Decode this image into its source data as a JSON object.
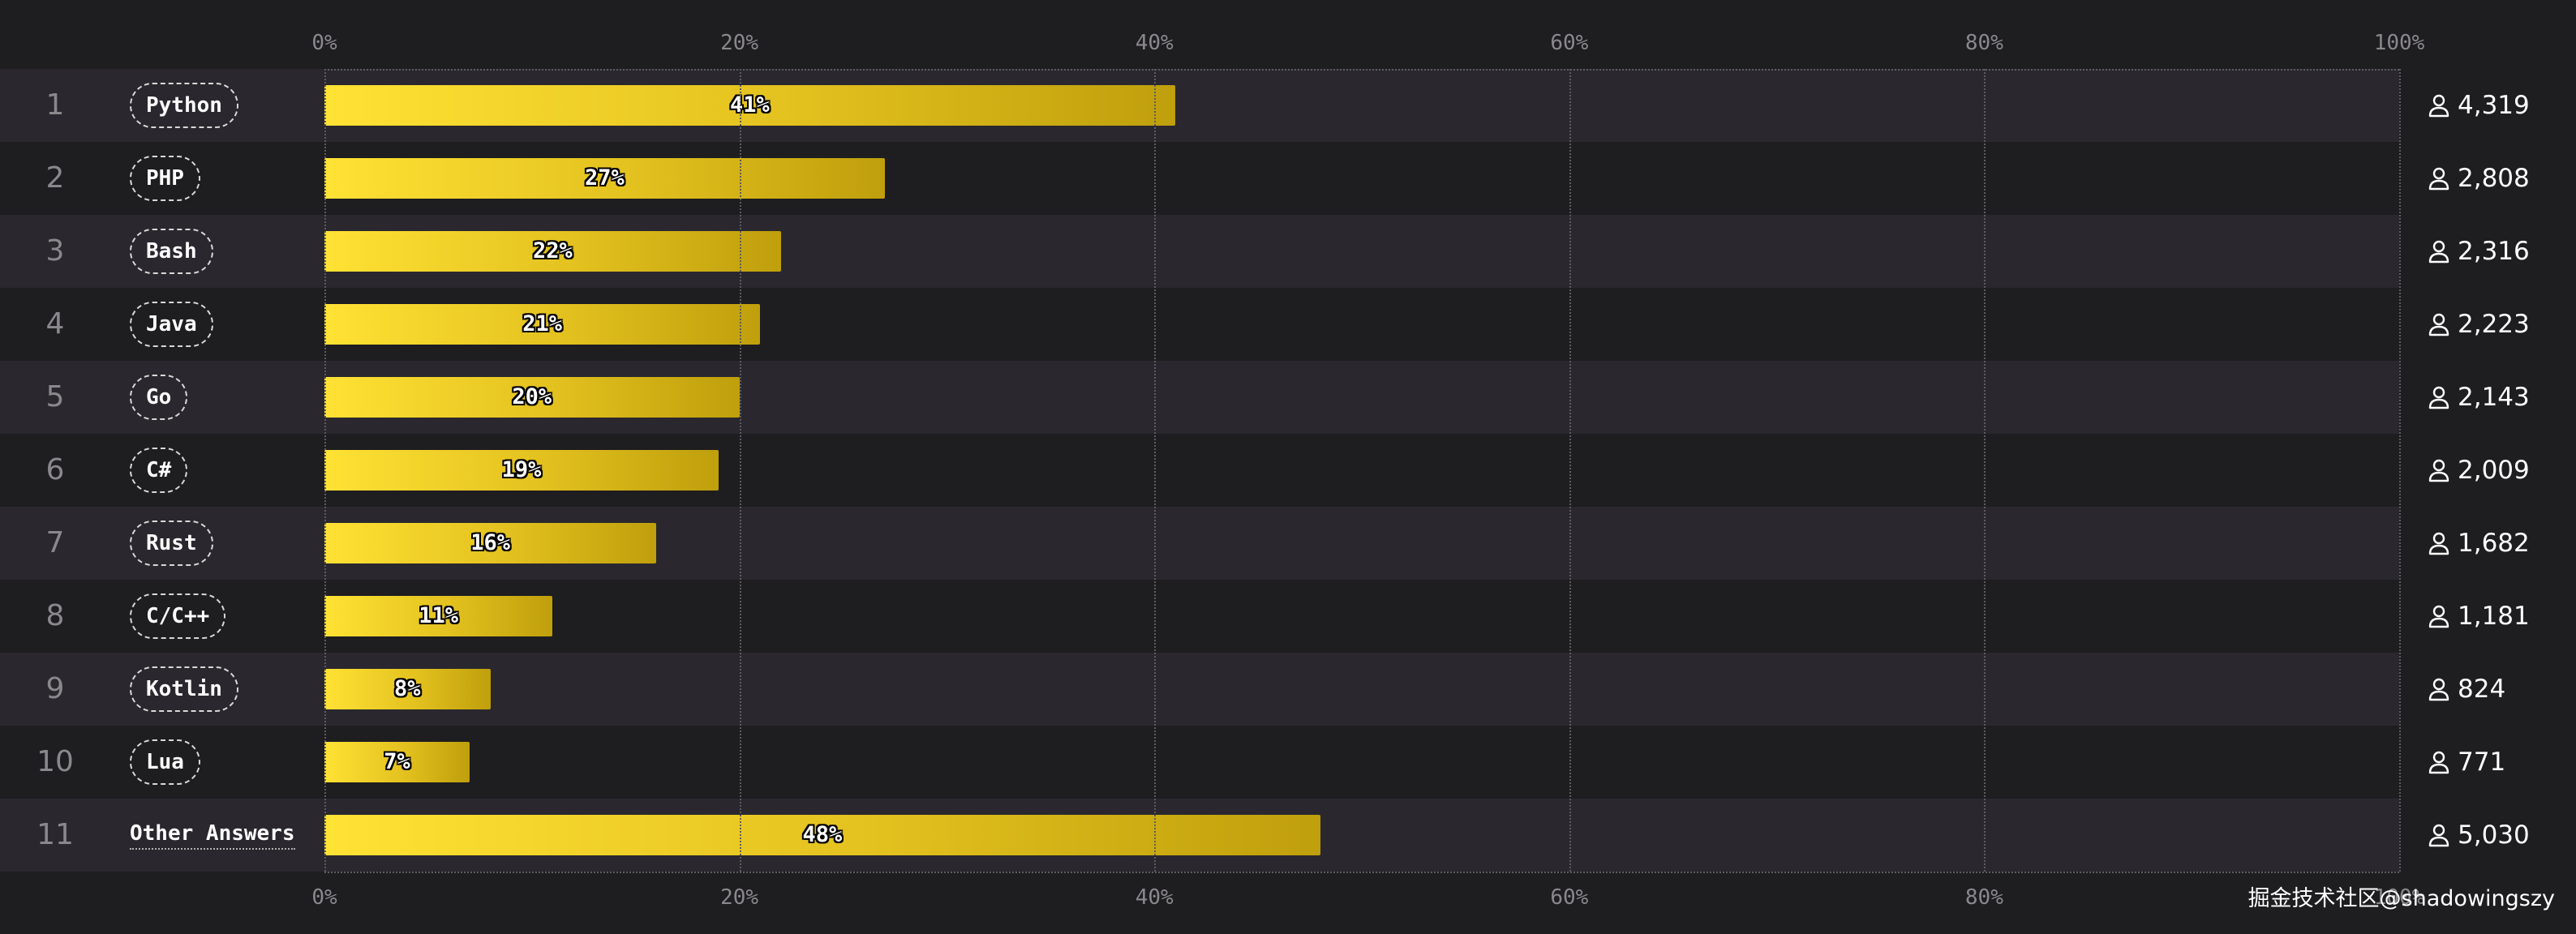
{
  "chart_data": {
    "type": "bar",
    "orientation": "horizontal",
    "categories": [
      "Python",
      "PHP",
      "Bash",
      "Java",
      "Go",
      "C#",
      "Rust",
      "C/C++",
      "Kotlin",
      "Lua",
      "Other Answers"
    ],
    "ranks": [
      "1",
      "2",
      "3",
      "4",
      "5",
      "6",
      "7",
      "8",
      "9",
      "10",
      "11"
    ],
    "values": [
      41,
      27,
      22,
      21,
      20,
      19,
      16,
      11,
      8,
      7,
      48
    ],
    "value_labels": [
      "41%",
      "27%",
      "22%",
      "21%",
      "20%",
      "19%",
      "16%",
      "11%",
      "8%",
      "7%",
      "48%"
    ],
    "respondents": [
      "4,319",
      "2,808",
      "2,316",
      "2,223",
      "2,143",
      "2,009",
      "1,682",
      "1,181",
      "824",
      "771",
      "5,030"
    ],
    "xlim": [
      0,
      100
    ],
    "x_ticks": [
      "0%",
      "20%",
      "40%",
      "60%",
      "80%",
      "100%"
    ],
    "grid": true,
    "colors": {
      "bar_start": "#ffe234",
      "bar_end": "#bf9f0c",
      "background": "#1e1d1f",
      "band": "#2a282e"
    }
  },
  "watermark": "掘金技术社区@shadowingszy",
  "icons": {
    "respondent": "person-icon"
  }
}
